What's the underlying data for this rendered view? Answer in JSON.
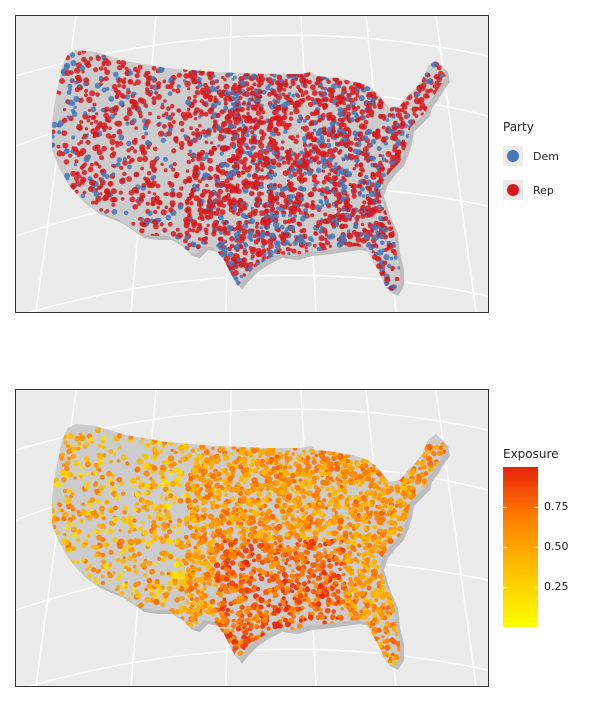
{
  "maps": [
    {
      "variable": "Party",
      "legend": {
        "title": "Party",
        "entries": [
          {
            "label": "Dem",
            "color": "#4477b5"
          },
          {
            "label": "Rep",
            "color": "#d7191c"
          }
        ]
      },
      "land_color": "#cccccc",
      "background_color": "#ebebeb"
    },
    {
      "variable": "Exposure",
      "legend": {
        "title": "Exposure",
        "scale": "continuous",
        "range": [
          0,
          1
        ],
        "ticks": [
          "0.75",
          "0.50",
          "0.25"
        ],
        "tick_values": [
          0.75,
          0.5,
          0.25
        ],
        "gradient_low": "#ffff00",
        "gradient_high": "#e8210a"
      },
      "land_color": "#cccccc",
      "background_color": "#ebebeb"
    }
  ]
}
